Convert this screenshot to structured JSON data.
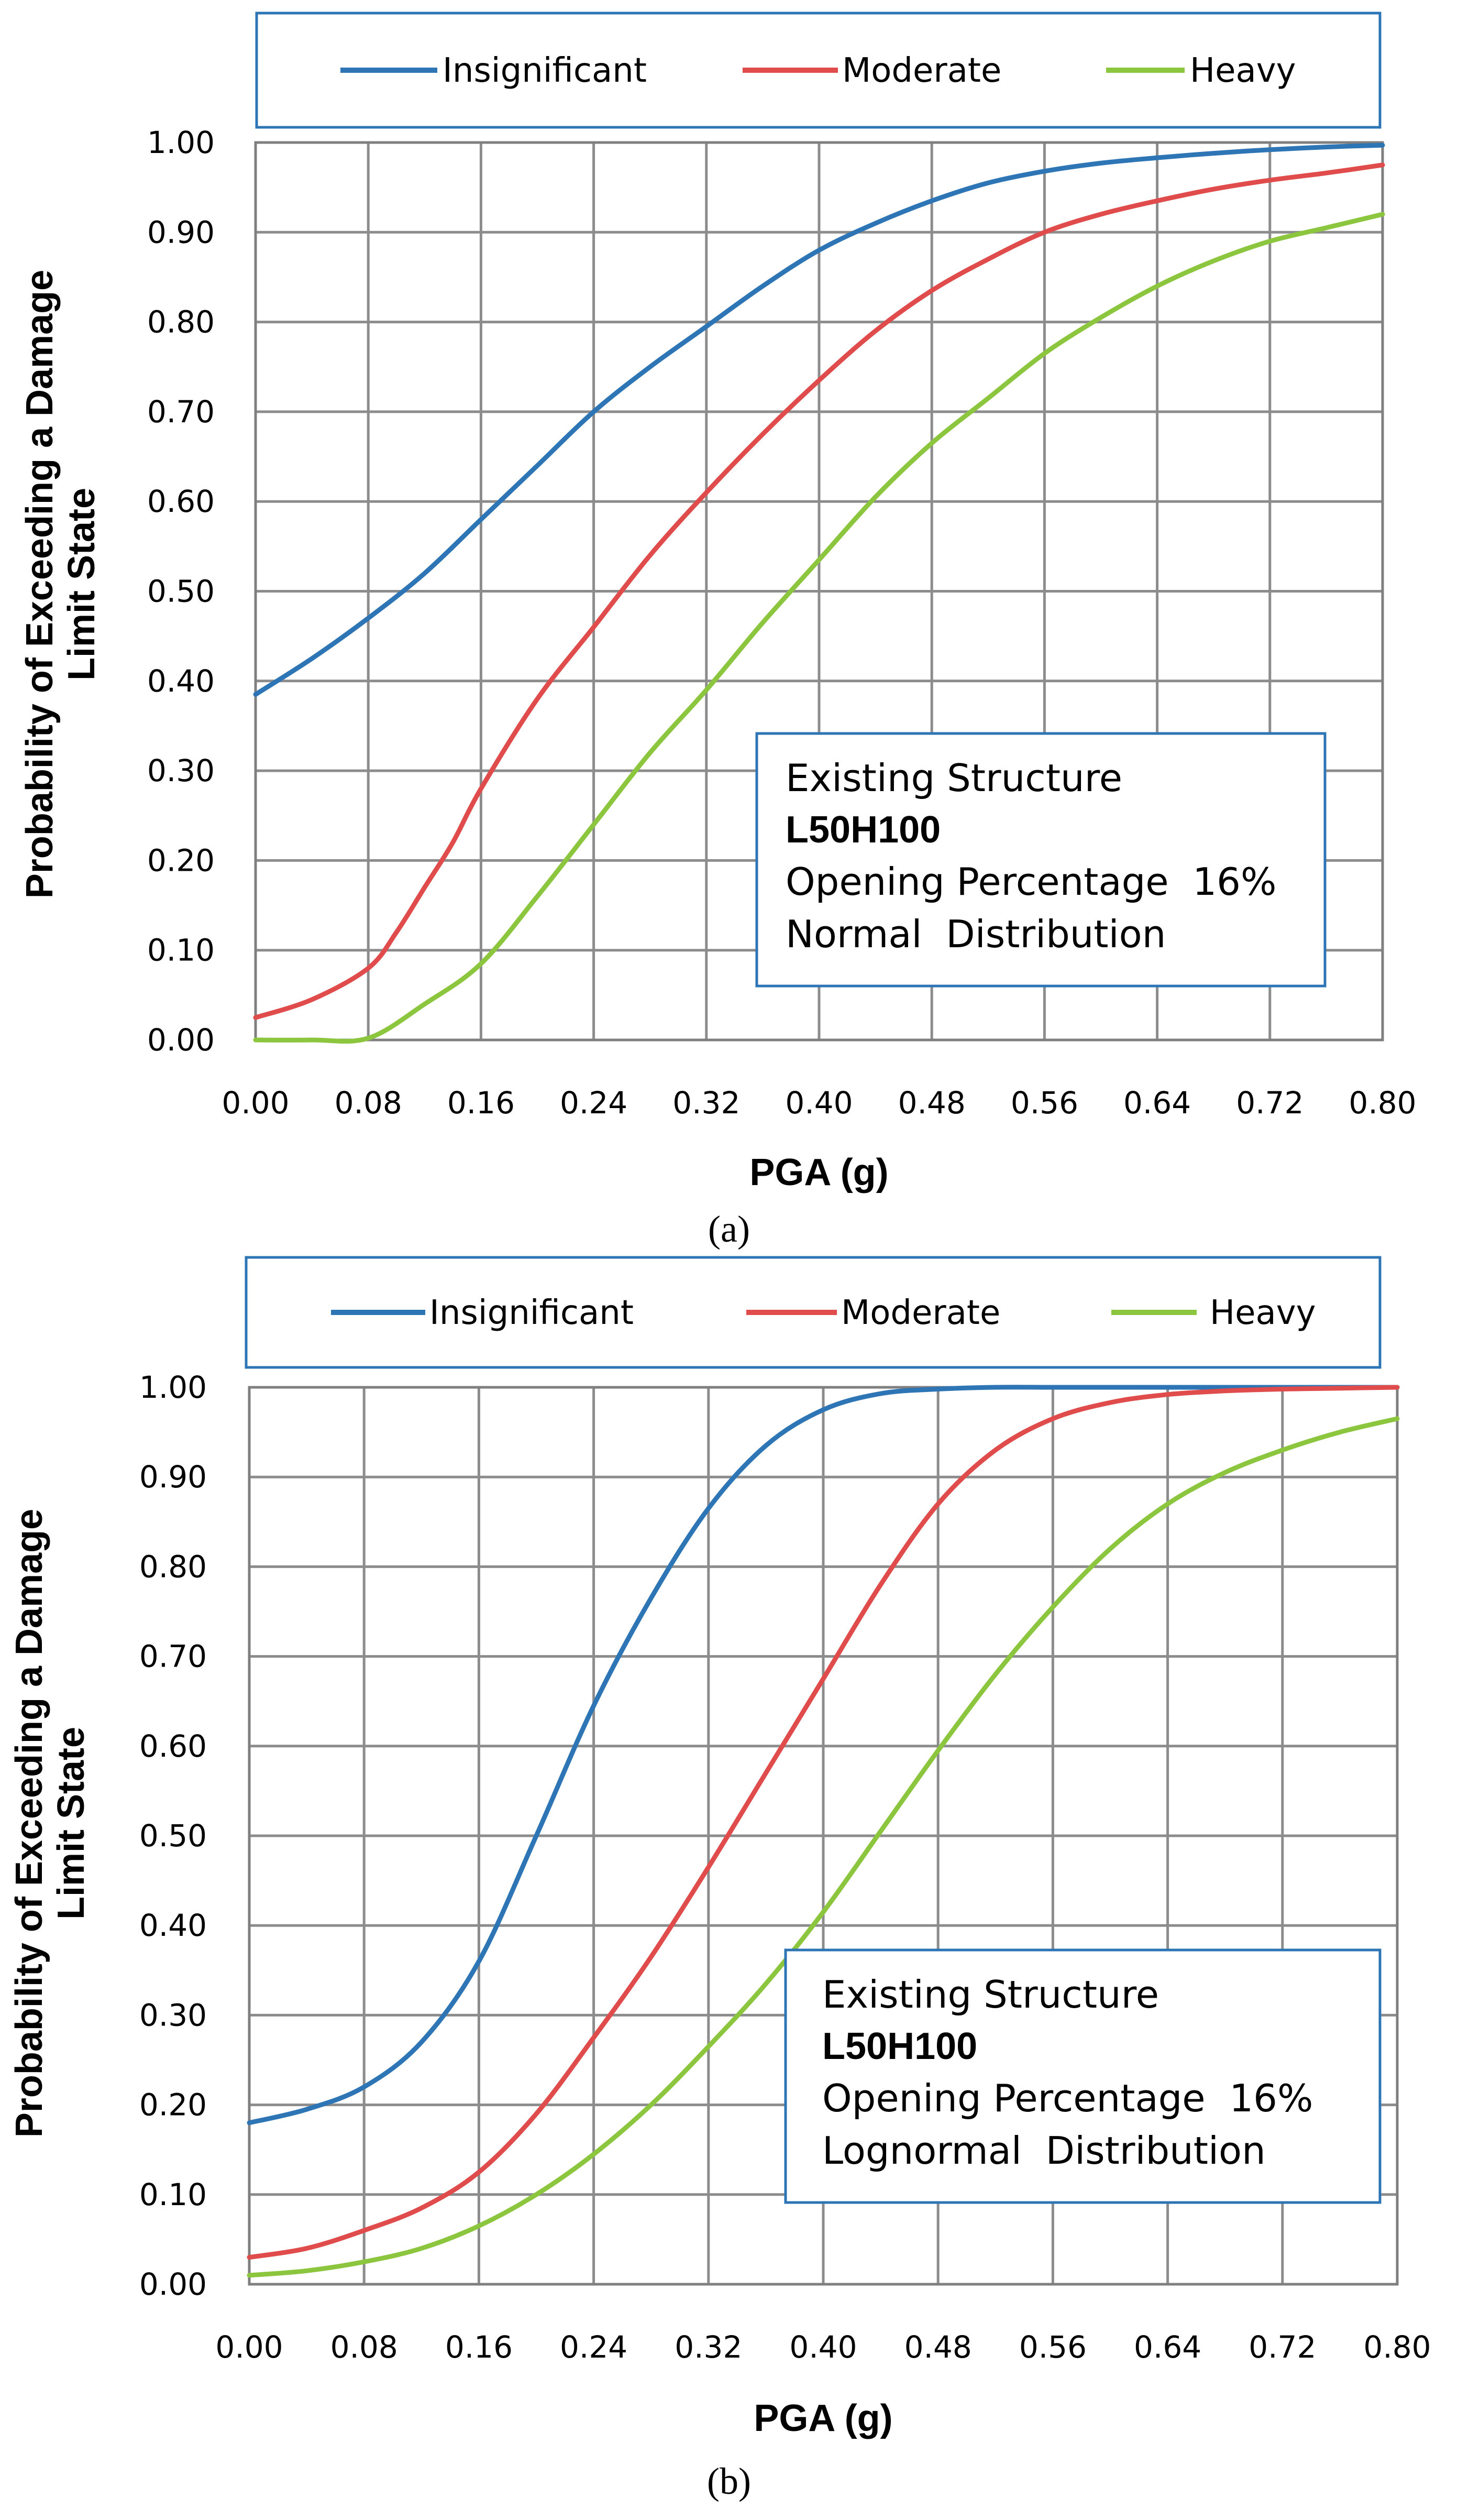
{
  "chart_data": [
    {
      "type": "line",
      "panel_label": "(a)",
      "xlabel": "PGA (g)",
      "ylabel_lines": [
        "Probability of Exceeding a Damage",
        "Limit State"
      ],
      "xlim": [
        0,
        0.8
      ],
      "ylim": [
        0,
        1
      ],
      "x_ticks": [
        "0.00",
        "0.08",
        "0.16",
        "0.24",
        "0.32",
        "0.40",
        "0.48",
        "0.56",
        "0.64",
        "0.72",
        "0.80"
      ],
      "y_ticks": [
        "0.00",
        "0.10",
        "0.20",
        "0.30",
        "0.40",
        "0.50",
        "0.60",
        "0.70",
        "0.80",
        "0.90",
        "1.00"
      ],
      "grid": true,
      "legend_position": "top",
      "annotation": {
        "lines": [
          "Existing Structure",
          "L50H100",
          "Opening Percentage  16%",
          "Normal  Distribution"
        ],
        "bold_line_index": 1
      },
      "series": [
        {
          "name": "Insignificant",
          "color": "#2e75b6",
          "x": [
            0,
            0.04,
            0.08,
            0.12,
            0.16,
            0.2,
            0.24,
            0.28,
            0.32,
            0.36,
            0.4,
            0.44,
            0.48,
            0.52,
            0.56,
            0.6,
            0.64,
            0.68,
            0.72,
            0.76,
            0.8
          ],
          "y": [
            0.385,
            0.425,
            0.47,
            0.52,
            0.58,
            0.64,
            0.7,
            0.75,
            0.795,
            0.84,
            0.88,
            0.91,
            0.935,
            0.955,
            0.968,
            0.977,
            0.983,
            0.988,
            0.992,
            0.995,
            0.997
          ]
        },
        {
          "name": "Moderate",
          "color": "#e04b4b",
          "x": [
            0,
            0.04,
            0.08,
            0.1,
            0.12,
            0.14,
            0.16,
            0.2,
            0.24,
            0.28,
            0.32,
            0.36,
            0.4,
            0.44,
            0.48,
            0.52,
            0.56,
            0.6,
            0.64,
            0.68,
            0.72,
            0.76,
            0.8
          ],
          "y": [
            0.025,
            0.045,
            0.08,
            0.12,
            0.17,
            0.22,
            0.28,
            0.38,
            0.46,
            0.54,
            0.61,
            0.675,
            0.735,
            0.79,
            0.835,
            0.87,
            0.9,
            0.92,
            0.935,
            0.948,
            0.958,
            0.966,
            0.975
          ]
        },
        {
          "name": "Heavy",
          "color": "#8cc63f",
          "x": [
            0,
            0.04,
            0.08,
            0.12,
            0.16,
            0.2,
            0.24,
            0.28,
            0.32,
            0.36,
            0.4,
            0.44,
            0.48,
            0.52,
            0.56,
            0.6,
            0.64,
            0.68,
            0.72,
            0.76,
            0.8
          ],
          "y": [
            0.0,
            0.0,
            0.002,
            0.04,
            0.085,
            0.16,
            0.24,
            0.32,
            0.39,
            0.465,
            0.535,
            0.605,
            0.665,
            0.715,
            0.765,
            0.805,
            0.84,
            0.868,
            0.89,
            0.905,
            0.92
          ]
        }
      ]
    },
    {
      "type": "line",
      "panel_label": "(b)",
      "xlabel": "PGA (g)",
      "ylabel_lines": [
        "Probability of Exceeding a Damage",
        "Limit State"
      ],
      "xlim": [
        0,
        0.8
      ],
      "ylim": [
        0,
        1
      ],
      "x_ticks": [
        "0.00",
        "0.08",
        "0.16",
        "0.24",
        "0.32",
        "0.40",
        "0.48",
        "0.56",
        "0.64",
        "0.72",
        "0.80"
      ],
      "y_ticks": [
        "0.00",
        "0.10",
        "0.20",
        "0.30",
        "0.40",
        "0.50",
        "0.60",
        "0.70",
        "0.80",
        "0.90",
        "1.00"
      ],
      "grid": true,
      "legend_position": "top",
      "annotation": {
        "lines": [
          "Existing Structure",
          "L50H100",
          "Opening Percentage  16%",
          "Lognormal  Distribution"
        ],
        "bold_line_index": 1
      },
      "series": [
        {
          "name": "Insignificant",
          "color": "#2e75b6",
          "x": [
            0,
            0.04,
            0.08,
            0.12,
            0.16,
            0.2,
            0.24,
            0.28,
            0.32,
            0.36,
            0.4,
            0.44,
            0.48,
            0.52,
            0.56,
            0.6,
            0.64,
            0.68,
            0.72,
            0.76,
            0.8
          ],
          "y": [
            0.18,
            0.195,
            0.22,
            0.27,
            0.36,
            0.5,
            0.645,
            0.765,
            0.865,
            0.935,
            0.975,
            0.993,
            0.998,
            1.0,
            1.0,
            1.0,
            1.0,
            1.0,
            1.0,
            1.0,
            1.0
          ]
        },
        {
          "name": "Moderate",
          "color": "#e04b4b",
          "x": [
            0,
            0.04,
            0.08,
            0.12,
            0.16,
            0.2,
            0.24,
            0.28,
            0.32,
            0.36,
            0.4,
            0.44,
            0.48,
            0.52,
            0.56,
            0.6,
            0.64,
            0.68,
            0.72,
            0.76,
            0.8
          ],
          "y": [
            0.03,
            0.04,
            0.06,
            0.085,
            0.125,
            0.19,
            0.275,
            0.365,
            0.465,
            0.57,
            0.675,
            0.78,
            0.87,
            0.93,
            0.965,
            0.983,
            0.992,
            0.996,
            0.998,
            0.999,
            1.0
          ]
        },
        {
          "name": "Heavy",
          "color": "#8cc63f",
          "x": [
            0,
            0.04,
            0.08,
            0.12,
            0.16,
            0.2,
            0.24,
            0.28,
            0.32,
            0.36,
            0.4,
            0.44,
            0.48,
            0.52,
            0.56,
            0.6,
            0.64,
            0.68,
            0.72,
            0.76,
            0.8
          ],
          "y": [
            0.01,
            0.015,
            0.025,
            0.04,
            0.065,
            0.1,
            0.145,
            0.2,
            0.265,
            0.335,
            0.415,
            0.505,
            0.595,
            0.68,
            0.755,
            0.82,
            0.87,
            0.905,
            0.93,
            0.95,
            0.965
          ]
        }
      ]
    }
  ]
}
